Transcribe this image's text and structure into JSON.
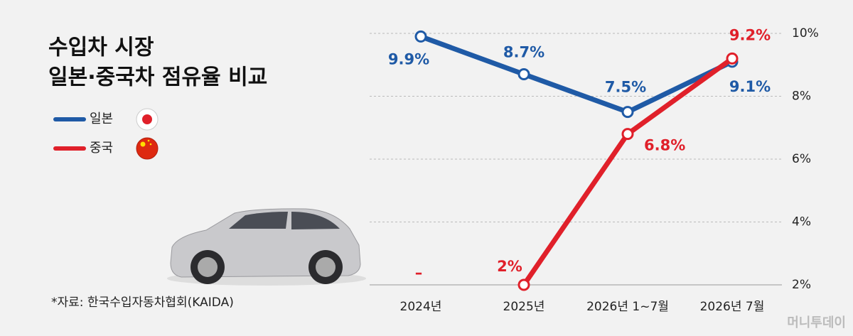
{
  "chart_data": {
    "type": "line",
    "title": [
      "수입차 시장",
      "일본·중국차 점유율 비교"
    ],
    "source": "*자료: 한국수입자동차협회(KAIDA)",
    "watermark": "머니투데이",
    "categories": [
      "2024년",
      "2025년",
      "2026년 1~7월",
      "2026년 7월"
    ],
    "series": [
      {
        "name": "일본",
        "color": "#1f5aa6",
        "values": [
          9.9,
          8.7,
          7.5,
          9.1
        ],
        "value_labels": [
          "9.9%",
          "8.7%",
          "7.5%",
          "9.1%"
        ]
      },
      {
        "name": "중국",
        "color": "#e0202a",
        "values": [
          null,
          2,
          6.8,
          9.2
        ],
        "value_labels": [
          "–",
          "2%",
          "6.8%",
          "9.2%"
        ]
      }
    ],
    "ylim": [
      2,
      10
    ],
    "yticks": [
      {
        "value": 2,
        "label": "2%"
      },
      {
        "value": 4,
        "label": "4%"
      },
      {
        "value": 6,
        "label": "6%"
      },
      {
        "value": 8,
        "label": "8%"
      },
      {
        "value": 10,
        "label": "10%"
      }
    ],
    "grid": true,
    "y_axis_side": "right",
    "legend": "upper left"
  }
}
